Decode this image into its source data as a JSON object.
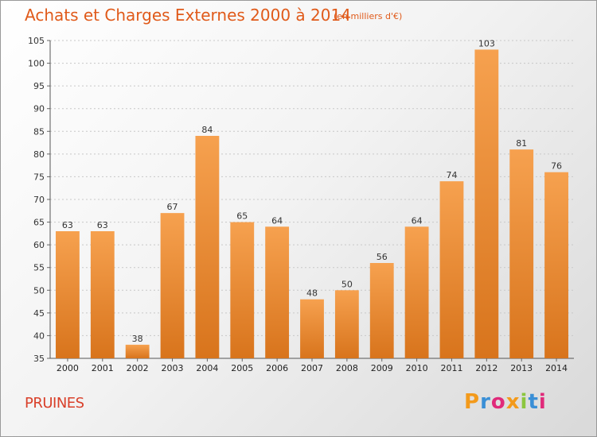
{
  "header": {
    "title": "Achats et Charges Externes 2000 à 2014",
    "subtitle": "(en milliers d'€)"
  },
  "footer": {
    "commune": "PRUINES",
    "logo_text": "Proxiti"
  },
  "colors": {
    "bar_top": "#f6a14f",
    "bar_bottom": "#d8741c",
    "title": "#e05a1a",
    "commune": "#d9402a",
    "logo": [
      "#f39a1b",
      "#3a8fd6",
      "#e02a7a",
      "#f39a1b",
      "#8cc63f",
      "#3a8fd6",
      "#e02a7a"
    ]
  },
  "chart_data": {
    "type": "bar",
    "categories": [
      "2000",
      "2001",
      "2002",
      "2003",
      "2004",
      "2005",
      "2006",
      "2007",
      "2008",
      "2009",
      "2010",
      "2011",
      "2012",
      "2013",
      "2014"
    ],
    "values": [
      63,
      63,
      38,
      67,
      84,
      65,
      64,
      48,
      50,
      56,
      64,
      74,
      103,
      81,
      76
    ],
    "title": "Achats et Charges Externes 2000 à 2014",
    "subtitle": "(en milliers d'€)",
    "xlabel": "",
    "ylabel": "",
    "ylim": [
      35,
      105
    ],
    "yticks": [
      35,
      40,
      45,
      50,
      55,
      60,
      65,
      70,
      75,
      80,
      85,
      90,
      95,
      100,
      105
    ],
    "grid": true,
    "legend": "none"
  }
}
